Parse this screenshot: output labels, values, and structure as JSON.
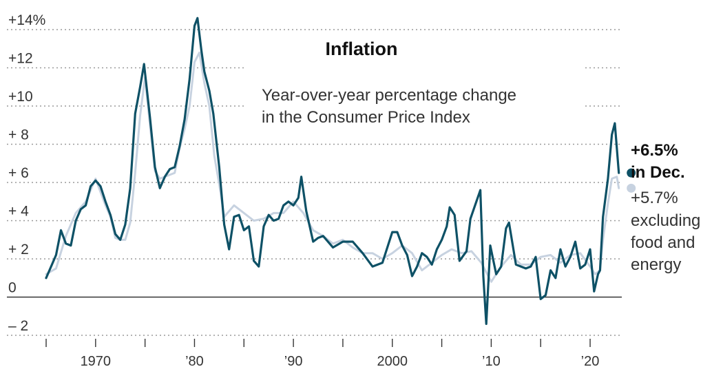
{
  "chart_data": {
    "type": "line",
    "title": "Inflation",
    "subtitle": [
      "Year-over-year percentage change",
      "in the Consumer Price Index"
    ],
    "xlabel": "",
    "ylabel": "",
    "xlim": [
      1965,
      2023.2
    ],
    "ylim": [
      -2,
      14
    ],
    "grid": true,
    "y_ticks": [
      {
        "value": 14,
        "label": "+14%"
      },
      {
        "value": 12,
        "label": "+12"
      },
      {
        "value": 10,
        "label": "+10"
      },
      {
        "value": 8,
        "label": "+  8"
      },
      {
        "value": 6,
        "label": "+  6"
      },
      {
        "value": 4,
        "label": "+  4"
      },
      {
        "value": 2,
        "label": "+  2"
      },
      {
        "value": 0,
        "label": "0"
      },
      {
        "value": -2,
        "label": "–  2"
      }
    ],
    "x_ticks": [
      {
        "value": 1970,
        "label": "1970"
      },
      {
        "value": 1980,
        "label": "’80"
      },
      {
        "value": 1990,
        "label": "’90"
      },
      {
        "value": 2000,
        "label": "2000"
      },
      {
        "value": 2010,
        "label": "’10"
      },
      {
        "value": 2020,
        "label": "’20"
      }
    ],
    "x_minor_ticks": [
      1965,
      1975,
      1985,
      1995,
      2005,
      2015
    ],
    "series": [
      {
        "name": "",
        "color": "#0e5166",
        "x": [
          1965.0,
          1965.5,
          1966.0,
          1966.5,
          1967.0,
          1967.5,
          1968.0,
          1968.5,
          1969.0,
          1969.5,
          1970.0,
          1970.5,
          1971.0,
          1971.5,
          1972.0,
          1972.5,
          1973.0,
          1973.5,
          1974.0,
          1974.5,
          1974.9,
          1975.5,
          1976.0,
          1976.5,
          1977.0,
          1977.5,
          1978.0,
          1978.5,
          1979.0,
          1979.5,
          1980.0,
          1980.3,
          1980.7,
          1981.0,
          1981.5,
          1981.9,
          1982.5,
          1983.0,
          1983.5,
          1984.0,
          1984.5,
          1985.0,
          1985.5,
          1986.0,
          1986.5,
          1987.0,
          1987.5,
          1988.0,
          1988.5,
          1989.0,
          1989.5,
          1990.0,
          1990.5,
          1990.8,
          1991.3,
          1992.0,
          1992.5,
          1993.0,
          1994.0,
          1995.0,
          1996.0,
          1997.0,
          1998.0,
          1999.0,
          2000.0,
          2000.5,
          2001.0,
          2001.5,
          2002.0,
          2002.5,
          2003.0,
          2003.5,
          2004.0,
          2004.5,
          2005.0,
          2005.5,
          2005.8,
          2006.3,
          2006.8,
          2007.5,
          2007.9,
          2008.5,
          2008.9,
          2009.2,
          2009.5,
          2009.9,
          2010.5,
          2011.0,
          2011.5,
          2011.8,
          2012.5,
          2013.0,
          2013.5,
          2014.0,
          2014.5,
          2015.0,
          2015.5,
          2016.0,
          2016.5,
          2017.0,
          2017.5,
          2018.0,
          2018.5,
          2019.0,
          2019.5,
          2020.0,
          2020.4,
          2020.8,
          2021.0,
          2021.3,
          2021.8,
          2022.2,
          2022.5,
          2022.9
        ],
        "y": [
          1.0,
          1.6,
          2.2,
          3.5,
          2.8,
          2.7,
          4.0,
          4.6,
          4.8,
          5.8,
          6.1,
          5.8,
          5.0,
          4.3,
          3.3,
          3.0,
          3.8,
          5.7,
          9.6,
          11.0,
          12.2,
          9.4,
          6.8,
          5.7,
          6.3,
          6.7,
          6.8,
          7.9,
          9.3,
          11.4,
          14.2,
          14.6,
          12.9,
          11.8,
          10.8,
          9.6,
          6.8,
          3.8,
          2.5,
          4.2,
          4.3,
          3.5,
          3.7,
          1.9,
          1.6,
          3.7,
          4.3,
          4.0,
          4.1,
          4.8,
          5.0,
          4.8,
          5.2,
          6.3,
          4.5,
          2.9,
          3.1,
          3.2,
          2.6,
          2.9,
          2.9,
          2.3,
          1.6,
          1.8,
          3.4,
          3.4,
          2.7,
          2.2,
          1.1,
          1.6,
          2.3,
          2.1,
          1.7,
          2.5,
          3.0,
          3.7,
          4.7,
          4.3,
          1.9,
          2.4,
          4.1,
          5.0,
          5.6,
          1.1,
          -1.4,
          2.7,
          1.2,
          1.6,
          3.6,
          3.9,
          1.7,
          1.6,
          1.5,
          1.6,
          2.1,
          -0.1,
          0.1,
          1.4,
          1.0,
          2.5,
          1.6,
          2.1,
          2.9,
          1.5,
          1.7,
          2.5,
          0.3,
          1.2,
          1.4,
          4.2,
          6.2,
          8.5,
          9.1,
          6.5
        ]
      },
      {
        "name": "",
        "color": "#c7d2e0",
        "x": [
          1965.0,
          1966.0,
          1967.0,
          1968.0,
          1969.0,
          1970.0,
          1971.0,
          1971.5,
          1972.0,
          1972.5,
          1973.0,
          1973.5,
          1974.0,
          1974.5,
          1975.0,
          1975.5,
          1976.0,
          1976.5,
          1977.0,
          1978.0,
          1978.5,
          1979.0,
          1979.5,
          1980.0,
          1980.5,
          1981.0,
          1981.5,
          1982.0,
          1982.5,
          1983.0,
          1984.0,
          1985.0,
          1986.0,
          1987.0,
          1988.0,
          1989.0,
          1990.0,
          1991.0,
          1992.0,
          1993.0,
          1994.0,
          1995.0,
          1996.0,
          1997.0,
          1998.0,
          1999.0,
          2000.0,
          2001.0,
          2002.0,
          2003.0,
          2004.0,
          2005.0,
          2006.0,
          2007.0,
          2008.0,
          2009.0,
          2010.0,
          2011.0,
          2012.0,
          2013.0,
          2014.0,
          2015.0,
          2016.0,
          2017.0,
          2018.0,
          2019.0,
          2020.0,
          2020.5,
          2021.0,
          2021.3,
          2021.8,
          2022.2,
          2022.7,
          2022.9
        ],
        "y": [
          1.2,
          1.5,
          3.2,
          4.4,
          5.0,
          6.2,
          4.8,
          4.2,
          3.1,
          3.0,
          3.0,
          3.9,
          6.5,
          9.5,
          11.5,
          9.0,
          6.6,
          6.2,
          6.3,
          6.5,
          7.8,
          8.8,
          10.0,
          12.3,
          12.8,
          11.2,
          10.0,
          7.4,
          5.9,
          4.2,
          4.8,
          4.4,
          4.0,
          4.1,
          4.4,
          4.4,
          5.0,
          4.4,
          3.5,
          3.2,
          2.8,
          3.0,
          2.6,
          2.3,
          2.3,
          2.0,
          2.3,
          2.7,
          2.3,
          1.4,
          1.8,
          2.2,
          2.5,
          2.3,
          2.4,
          1.8,
          0.8,
          1.6,
          2.2,
          1.7,
          1.7,
          2.1,
          2.2,
          1.8,
          2.2,
          2.3,
          1.6,
          1.2,
          1.4,
          3.0,
          4.9,
          6.2,
          6.3,
          5.7
        ]
      }
    ],
    "annotations": {
      "main_value": "+6.5%",
      "main_label": "in Dec.",
      "secondary_lines": [
        "+5.7%",
        "excluding",
        "food and",
        "energy"
      ]
    }
  }
}
